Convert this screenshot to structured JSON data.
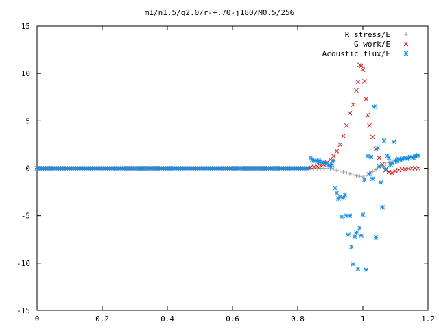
{
  "chart_data": {
    "type": "scatter",
    "title": "m1/n1.5/q2.0/r-+.70-j180/M0.5/256",
    "xlabel": "",
    "ylabel": "",
    "xlim": [
      0,
      1.2
    ],
    "ylim": [
      -15,
      15
    ],
    "x_ticks": [
      "0",
      "0.2",
      "0.4",
      "0.6",
      "0.8",
      "1",
      "1.2"
    ],
    "y_ticks": [
      "15",
      "10",
      "5",
      "0",
      "-5",
      "-10",
      "-15"
    ],
    "x_tick_values": [
      0,
      0.2,
      0.4,
      0.6,
      0.8,
      1.0,
      1.2
    ],
    "y_tick_values": [
      15,
      10,
      5,
      0,
      -5,
      -10,
      -15
    ],
    "grid": false,
    "legend_position": "top-right",
    "series": [
      {
        "name": "R stress/E",
        "marker": "plus",
        "color": "#a0a0a0",
        "x": [
          0.84,
          0.85,
          0.86,
          0.87,
          0.88,
          0.89,
          0.9,
          0.91,
          0.92,
          0.93,
          0.94,
          0.95,
          0.96,
          0.97,
          0.98,
          0.99,
          1.0,
          1.01,
          1.02,
          1.03,
          1.04,
          1.05,
          1.06,
          1.07,
          1.08,
          1.09,
          1.1,
          1.11,
          1.12,
          1.13,
          1.14,
          1.15,
          1.16,
          1.17
        ],
        "y": [
          0.0,
          0.0,
          0.0,
          0.0,
          0.0,
          -0.02,
          -0.05,
          -0.1,
          -0.2,
          -0.3,
          -0.4,
          -0.5,
          -0.6,
          -0.7,
          -0.8,
          -0.85,
          -0.9,
          -0.75,
          -0.55,
          -0.35,
          -0.15,
          0.05,
          0.25,
          0.45,
          0.6,
          0.75,
          0.85,
          0.95,
          1.0,
          1.05,
          1.1,
          1.12,
          1.15,
          1.2
        ]
      },
      {
        "name": "G work/E",
        "marker": "cross",
        "color": "#d02020",
        "x": [
          0.84,
          0.85,
          0.86,
          0.87,
          0.88,
          0.89,
          0.9,
          0.91,
          0.92,
          0.93,
          0.94,
          0.95,
          0.96,
          0.97,
          0.98,
          0.985,
          0.99,
          0.995,
          1.0,
          1.005,
          1.01,
          1.015,
          1.02,
          1.03,
          1.04,
          1.05,
          1.06,
          1.07,
          1.08,
          1.09,
          1.1,
          1.11,
          1.12,
          1.13,
          1.14,
          1.15,
          1.16,
          1.17
        ],
        "y": [
          0.1,
          0.15,
          0.2,
          0.3,
          0.4,
          0.6,
          0.9,
          1.3,
          1.8,
          2.5,
          3.4,
          4.5,
          5.8,
          6.7,
          8.2,
          9.1,
          10.9,
          10.8,
          10.4,
          9.2,
          7.3,
          5.6,
          4.5,
          3.3,
          2.0,
          1.1,
          0.4,
          -0.2,
          -0.4,
          -0.5,
          -0.3,
          -0.2,
          -0.1,
          -0.1,
          -0.05,
          0.0,
          0.0,
          0.0
        ]
      },
      {
        "name": "Acoustic flux/E",
        "marker": "star",
        "color": "#1a8ee0",
        "x": [
          0.84,
          0.845,
          0.85,
          0.855,
          0.86,
          0.865,
          0.87,
          0.875,
          0.88,
          0.885,
          0.89,
          0.895,
          0.9,
          0.905,
          0.91,
          0.915,
          0.92,
          0.925,
          0.93,
          0.935,
          0.94,
          0.945,
          0.95,
          0.955,
          0.96,
          0.965,
          0.97,
          0.975,
          0.98,
          0.985,
          0.99,
          0.995,
          1.0,
          1.005,
          1.01,
          1.015,
          1.02,
          1.025,
          1.03,
          1.035,
          1.04,
          1.045,
          1.05,
          1.055,
          1.06,
          1.065,
          1.07,
          1.075,
          1.08,
          1.085,
          1.09,
          1.095,
          1.1,
          1.105,
          1.11,
          1.115,
          1.12,
          1.125,
          1.13,
          1.135,
          1.14,
          1.145,
          1.15,
          1.155,
          1.16,
          1.165,
          1.17
        ],
        "y": [
          1.1,
          0.9,
          0.8,
          0.8,
          0.7,
          0.8,
          0.7,
          0.6,
          0.6,
          0.5,
          0.5,
          0.3,
          0.2,
          0.4,
          0.8,
          -2.1,
          -2.6,
          -3.2,
          -3.0,
          -5.1,
          -3.1,
          -2.8,
          -5.0,
          -7.0,
          -5.0,
          -8.3,
          -10.1,
          -7.2,
          -6.8,
          -10.6,
          -6.3,
          -7.1,
          -4.9,
          -1.2,
          -10.7,
          1.3,
          -0.6,
          1.2,
          -1.1,
          6.5,
          -7.3,
          2.1,
          0.2,
          -1.5,
          -4.1,
          2.9,
          -0.1,
          1.3,
          1.1,
          0.4,
          0.5,
          2.8,
          0.8,
          0.7,
          1.0,
          0.9,
          1.0,
          1.0,
          1.1,
          1.0,
          1.1,
          1.2,
          1.2,
          1.1,
          1.3,
          1.3,
          1.4
        ]
      }
    ]
  }
}
